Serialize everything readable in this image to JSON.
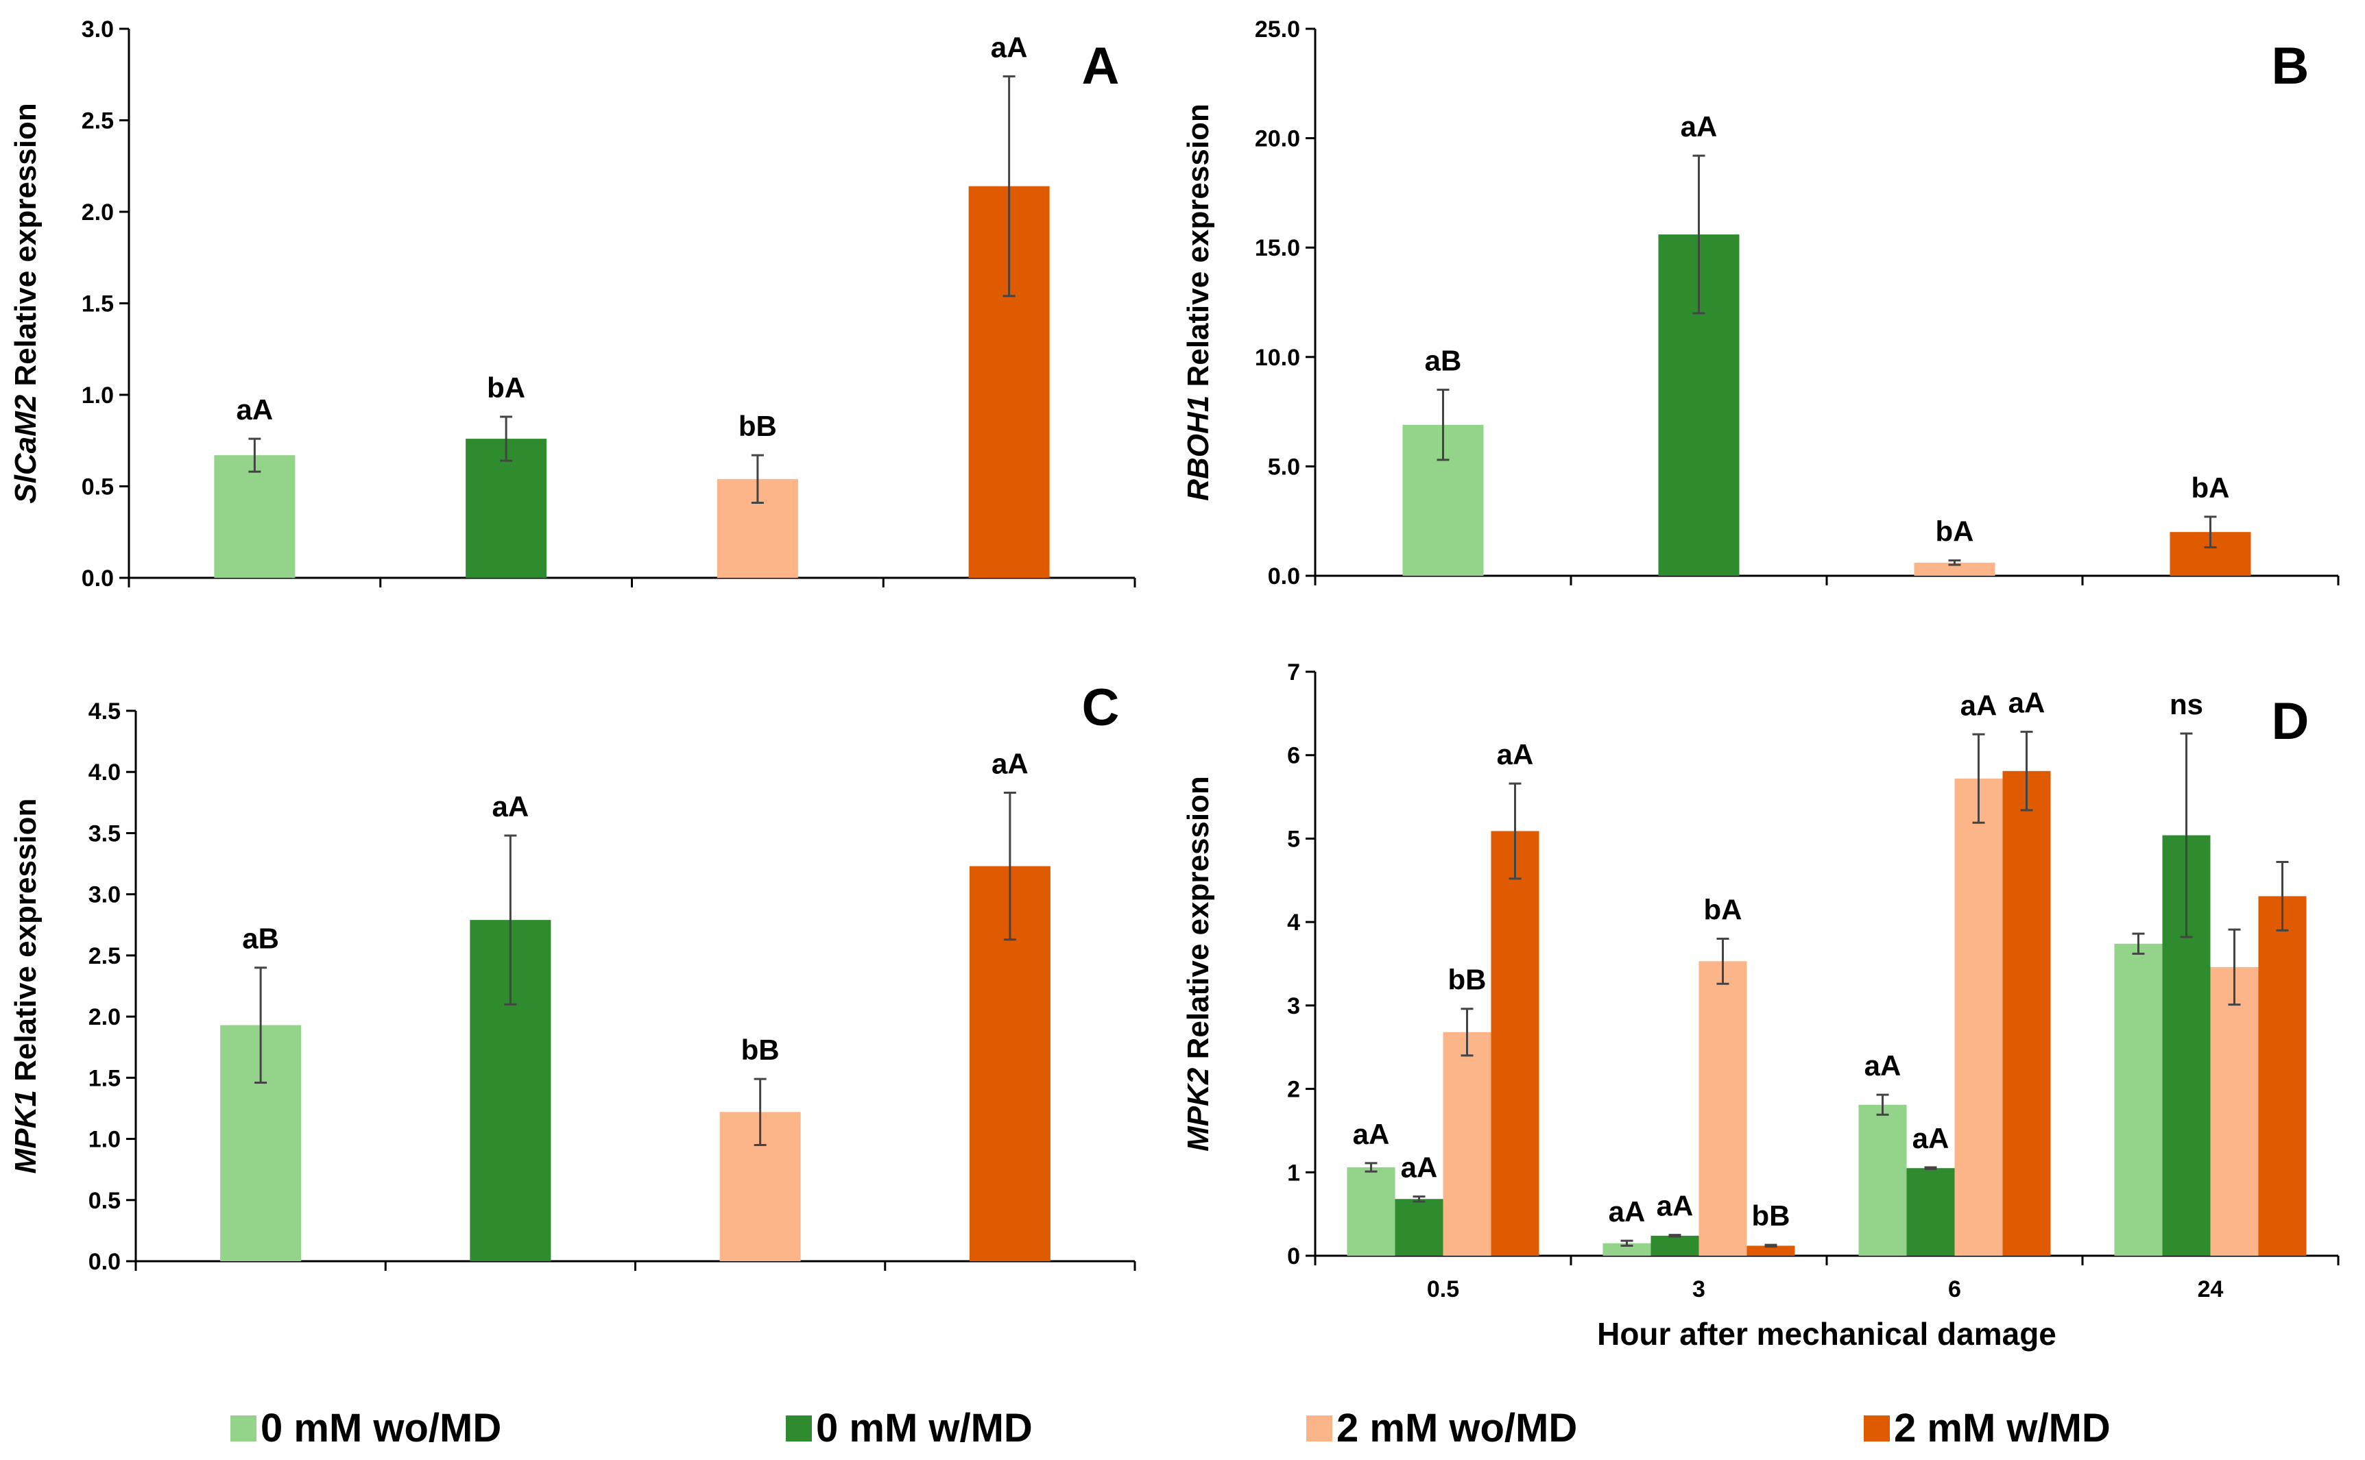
{
  "chart_data": [
    {
      "type": "bar",
      "panel_letter": "A",
      "ylabel_gene": "SlCaM2",
      "ylabel_rest": " Relative expression",
      "ylim": [
        0,
        3.0
      ],
      "yticks": [
        "0.0",
        "0.5",
        "1.0",
        "1.5",
        "2.0",
        "2.5",
        "3.0"
      ],
      "categories": [
        "0 mM wo/MD",
        "0 mM w/MD",
        "2 mM wo/MD",
        "2 mM w/MD"
      ],
      "values": [
        0.67,
        0.76,
        0.54,
        2.14
      ],
      "errors": [
        0.09,
        0.12,
        0.13,
        0.6
      ],
      "labels": [
        "aA",
        "bA",
        "bB",
        "aA"
      ]
    },
    {
      "type": "bar",
      "panel_letter": "B",
      "ylabel_gene": "RBOH1",
      "ylabel_rest": " Relative expression",
      "ylim": [
        0,
        25.0
      ],
      "yticks": [
        "0.0",
        "5.0",
        "10.0",
        "15.0",
        "20.0",
        "25.0"
      ],
      "categories": [
        "0 mM wo/MD",
        "0 mM w/MD",
        "2 mM wo/MD",
        "2 mM w/MD"
      ],
      "values": [
        6.9,
        15.6,
        0.6,
        2.0
      ],
      "errors": [
        1.6,
        3.6,
        0.1,
        0.7
      ],
      "labels": [
        "aB",
        "aA",
        "bA",
        "bA"
      ]
    },
    {
      "type": "bar",
      "panel_letter": "C",
      "ylabel_gene": "MPK1",
      "ylabel_rest": " Relative expression",
      "ylim": [
        0,
        4.5
      ],
      "yticks": [
        "0.0",
        "0.5",
        "1.0",
        "1.5",
        "2.0",
        "2.5",
        "3.0",
        "3.5",
        "4.0",
        "4.5"
      ],
      "categories": [
        "0 mM wo/MD",
        "0 mM w/MD",
        "2 mM wo/MD",
        "2 mM w/MD"
      ],
      "values": [
        1.93,
        2.79,
        1.22,
        3.23
      ],
      "errors": [
        0.47,
        0.69,
        0.27,
        0.6
      ],
      "labels": [
        "aB",
        "aA",
        "bB",
        "aA"
      ]
    },
    {
      "type": "bar",
      "panel_letter": "D",
      "ylabel_gene": "MPK2",
      "ylabel_rest": " Relative expression",
      "xlabel": "Hour after mechanical damage",
      "ylim": [
        0,
        7
      ],
      "yticks": [
        "0",
        "1",
        "2",
        "3",
        "4",
        "5",
        "6",
        "7"
      ],
      "categories": [
        "0.5",
        "3",
        "6",
        "24"
      ],
      "series": [
        {
          "name": "0 mM wo/MD",
          "values": [
            1.06,
            0.15,
            1.81,
            3.74
          ],
          "errors": [
            0.05,
            0.03,
            0.12,
            0.12
          ]
        },
        {
          "name": "0 mM w/MD",
          "values": [
            0.68,
            0.24,
            1.05,
            5.04
          ],
          "errors": [
            0.03,
            0.01,
            0.01,
            1.22
          ]
        },
        {
          "name": "2 mM wo/MD",
          "values": [
            2.68,
            3.53,
            5.72,
            3.46
          ],
          "errors": [
            0.28,
            0.27,
            0.53,
            0.45
          ]
        },
        {
          "name": "2 mM w/MD",
          "values": [
            5.09,
            0.12,
            5.81,
            4.31
          ],
          "errors": [
            0.57,
            0.01,
            0.47,
            0.41
          ]
        }
      ],
      "group_labels": [
        [
          "aA",
          "aA",
          "bB",
          "aA"
        ],
        [
          "aA",
          "aA",
          "bA",
          "bB"
        ],
        [
          "aA",
          "aA",
          "aA",
          "aA"
        ],
        [
          "",
          "ns",
          "",
          ""
        ]
      ]
    }
  ],
  "legend": [
    {
      "name": "0 mM wo/MD",
      "color": "#93d38a"
    },
    {
      "name": "0 mM w/MD",
      "color": "#2e8b2e"
    },
    {
      "name": "2 mM wo/MD",
      "color": "#fbb589"
    },
    {
      "name": "2 mM w/MD",
      "color": "#e05a00"
    }
  ],
  "colors": [
    "#93d38a",
    "#2e8b2e",
    "#fbb589",
    "#e05a00"
  ]
}
